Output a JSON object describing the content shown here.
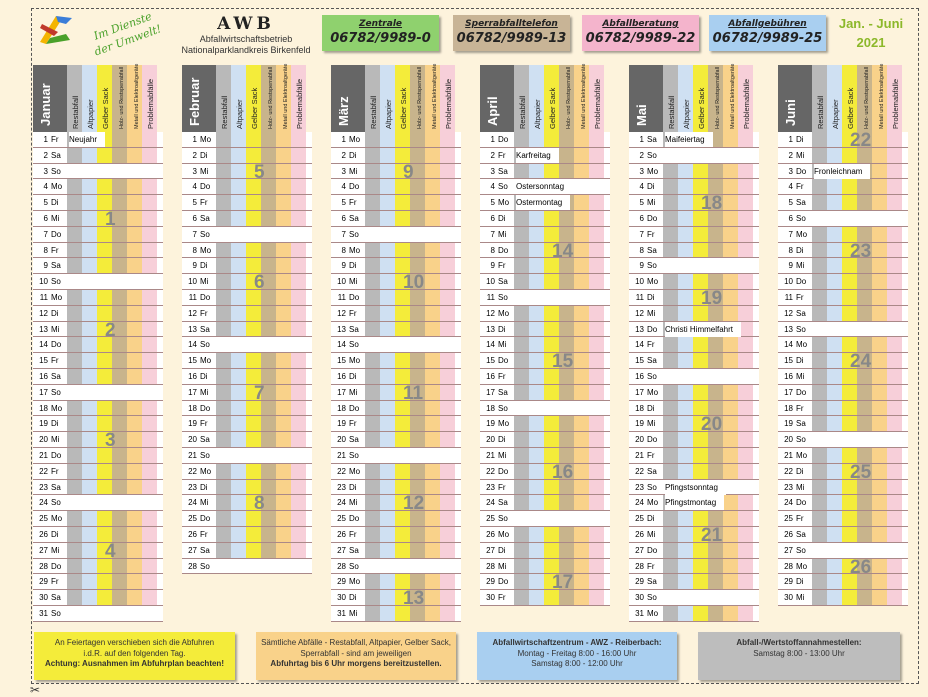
{
  "header": {
    "title": "AWB",
    "subtitle1": "Abfallwirtschaftsbetrieb",
    "subtitle2": "Nationalparklandkreis Birkenfeld",
    "slogan": "Im Dienste der Umwelt!",
    "period": "Jan. - Juni",
    "year": "2021"
  },
  "cards": [
    {
      "label": "Zentrale",
      "number": "06782/9989-0",
      "color": "#8fd16e"
    },
    {
      "label": "Sperrabfalltelefon",
      "number": "06782/9989-13",
      "color": "#c8b496"
    },
    {
      "label": "Abfallberatung",
      "number": "06782/9989-22",
      "color": "#f4b4cc"
    },
    {
      "label": "Abfallgebühren",
      "number": "06782/9989-25",
      "color": "#a9cff0"
    }
  ],
  "column_headers": [
    "Restabfall",
    "Altpapier",
    "Gelber Sack",
    "Holz- und Restsperrabfall",
    "Metall und Elektroaltgeräte",
    "Problemabfälle"
  ],
  "column_colors": [
    "#b9b9b9",
    "#cfe0f2",
    "#f4ec3a",
    "#c8b48c",
    "#f9d28a",
    "#f7cfd9"
  ],
  "months": [
    {
      "name": "Januar",
      "days": [
        [
          "1",
          "Fr",
          "Neujahr"
        ],
        [
          "2",
          "Sa",
          ""
        ],
        [
          "3",
          "So",
          ""
        ],
        [
          "4",
          "Mo",
          ""
        ],
        [
          "5",
          "Di",
          ""
        ],
        [
          "6",
          "Mi",
          ""
        ],
        [
          "7",
          "Do",
          ""
        ],
        [
          "8",
          "Fr",
          ""
        ],
        [
          "9",
          "Sa",
          ""
        ],
        [
          "10",
          "So",
          ""
        ],
        [
          "11",
          "Mo",
          ""
        ],
        [
          "12",
          "Di",
          ""
        ],
        [
          "13",
          "Mi",
          ""
        ],
        [
          "14",
          "Do",
          ""
        ],
        [
          "15",
          "Fr",
          ""
        ],
        [
          "16",
          "Sa",
          ""
        ],
        [
          "17",
          "So",
          ""
        ],
        [
          "18",
          "Mo",
          ""
        ],
        [
          "19",
          "Di",
          ""
        ],
        [
          "20",
          "Mi",
          ""
        ],
        [
          "21",
          "Do",
          ""
        ],
        [
          "22",
          "Fr",
          ""
        ],
        [
          "23",
          "Sa",
          ""
        ],
        [
          "24",
          "So",
          ""
        ],
        [
          "25",
          "Mo",
          ""
        ],
        [
          "26",
          "Di",
          ""
        ],
        [
          "27",
          "Mi",
          ""
        ],
        [
          "28",
          "Do",
          ""
        ],
        [
          "29",
          "Fr",
          ""
        ],
        [
          "30",
          "Sa",
          ""
        ],
        [
          "31",
          "So",
          ""
        ]
      ],
      "weeks": [
        {
          "n": "1",
          "row": 5
        },
        {
          "n": "2",
          "row": 12
        },
        {
          "n": "3",
          "row": 19
        },
        {
          "n": "4",
          "row": 26
        }
      ]
    },
    {
      "name": "Februar",
      "days": [
        [
          "1",
          "Mo",
          ""
        ],
        [
          "2",
          "Di",
          ""
        ],
        [
          "3",
          "Mi",
          ""
        ],
        [
          "4",
          "Do",
          ""
        ],
        [
          "5",
          "Fr",
          ""
        ],
        [
          "6",
          "Sa",
          ""
        ],
        [
          "7",
          "So",
          ""
        ],
        [
          "8",
          "Mo",
          ""
        ],
        [
          "9",
          "Di",
          ""
        ],
        [
          "10",
          "Mi",
          ""
        ],
        [
          "11",
          "Do",
          ""
        ],
        [
          "12",
          "Fr",
          ""
        ],
        [
          "13",
          "Sa",
          ""
        ],
        [
          "14",
          "So",
          ""
        ],
        [
          "15",
          "Mo",
          ""
        ],
        [
          "16",
          "Di",
          ""
        ],
        [
          "17",
          "Mi",
          ""
        ],
        [
          "18",
          "Do",
          ""
        ],
        [
          "19",
          "Fr",
          ""
        ],
        [
          "20",
          "Sa",
          ""
        ],
        [
          "21",
          "So",
          ""
        ],
        [
          "22",
          "Mo",
          ""
        ],
        [
          "23",
          "Di",
          ""
        ],
        [
          "24",
          "Mi",
          ""
        ],
        [
          "25",
          "Do",
          ""
        ],
        [
          "26",
          "Fr",
          ""
        ],
        [
          "27",
          "Sa",
          ""
        ],
        [
          "28",
          "So",
          ""
        ]
      ],
      "weeks": [
        {
          "n": "5",
          "row": 2
        },
        {
          "n": "6",
          "row": 9
        },
        {
          "n": "7",
          "row": 16
        },
        {
          "n": "8",
          "row": 23
        }
      ]
    },
    {
      "name": "März",
      "days": [
        [
          "1",
          "Mo",
          ""
        ],
        [
          "2",
          "Di",
          ""
        ],
        [
          "3",
          "Mi",
          ""
        ],
        [
          "4",
          "Do",
          ""
        ],
        [
          "5",
          "Fr",
          ""
        ],
        [
          "6",
          "Sa",
          ""
        ],
        [
          "7",
          "So",
          ""
        ],
        [
          "8",
          "Mo",
          ""
        ],
        [
          "9",
          "Di",
          ""
        ],
        [
          "10",
          "Mi",
          ""
        ],
        [
          "11",
          "Do",
          ""
        ],
        [
          "12",
          "Fr",
          ""
        ],
        [
          "13",
          "Sa",
          ""
        ],
        [
          "14",
          "So",
          ""
        ],
        [
          "15",
          "Mo",
          ""
        ],
        [
          "16",
          "Di",
          ""
        ],
        [
          "17",
          "Mi",
          ""
        ],
        [
          "18",
          "Do",
          ""
        ],
        [
          "19",
          "Fr",
          ""
        ],
        [
          "20",
          "Sa",
          ""
        ],
        [
          "21",
          "So",
          ""
        ],
        [
          "22",
          "Mo",
          ""
        ],
        [
          "23",
          "Di",
          ""
        ],
        [
          "24",
          "Mi",
          ""
        ],
        [
          "25",
          "Do",
          ""
        ],
        [
          "26",
          "Fr",
          ""
        ],
        [
          "27",
          "Sa",
          ""
        ],
        [
          "28",
          "So",
          ""
        ],
        [
          "29",
          "Mo",
          ""
        ],
        [
          "30",
          "Di",
          ""
        ],
        [
          "31",
          "Mi",
          ""
        ]
      ],
      "weeks": [
        {
          "n": "9",
          "row": 2
        },
        {
          "n": "10",
          "row": 9
        },
        {
          "n": "11",
          "row": 16
        },
        {
          "n": "12",
          "row": 23
        },
        {
          "n": "13",
          "row": 29
        }
      ]
    },
    {
      "name": "April",
      "days": [
        [
          "1",
          "Do",
          ""
        ],
        [
          "2",
          "Fr",
          "Karfreitag"
        ],
        [
          "3",
          "Sa",
          ""
        ],
        [
          "4",
          "So",
          "Ostersonntag"
        ],
        [
          "5",
          "Mo",
          "Ostermontag"
        ],
        [
          "6",
          "Di",
          ""
        ],
        [
          "7",
          "Mi",
          ""
        ],
        [
          "8",
          "Do",
          ""
        ],
        [
          "9",
          "Fr",
          ""
        ],
        [
          "10",
          "Sa",
          ""
        ],
        [
          "11",
          "So",
          ""
        ],
        [
          "12",
          "Mo",
          ""
        ],
        [
          "13",
          "Di",
          ""
        ],
        [
          "14",
          "Mi",
          ""
        ],
        [
          "15",
          "Do",
          ""
        ],
        [
          "16",
          "Fr",
          ""
        ],
        [
          "17",
          "Sa",
          ""
        ],
        [
          "18",
          "So",
          ""
        ],
        [
          "19",
          "Mo",
          ""
        ],
        [
          "20",
          "Di",
          ""
        ],
        [
          "21",
          "Mi",
          ""
        ],
        [
          "22",
          "Do",
          ""
        ],
        [
          "23",
          "Fr",
          ""
        ],
        [
          "24",
          "Sa",
          ""
        ],
        [
          "25",
          "So",
          ""
        ],
        [
          "26",
          "Mo",
          ""
        ],
        [
          "27",
          "Di",
          ""
        ],
        [
          "28",
          "Mi",
          ""
        ],
        [
          "29",
          "Do",
          ""
        ],
        [
          "30",
          "Fr",
          ""
        ]
      ],
      "weeks": [
        {
          "n": "14",
          "row": 7
        },
        {
          "n": "15",
          "row": 14
        },
        {
          "n": "16",
          "row": 21
        },
        {
          "n": "17",
          "row": 28
        }
      ]
    },
    {
      "name": "Mai",
      "days": [
        [
          "1",
          "Sa",
          "Maifeiertag"
        ],
        [
          "2",
          "So",
          ""
        ],
        [
          "3",
          "Mo",
          ""
        ],
        [
          "4",
          "Di",
          ""
        ],
        [
          "5",
          "Mi",
          ""
        ],
        [
          "6",
          "Do",
          ""
        ],
        [
          "7",
          "Fr",
          ""
        ],
        [
          "8",
          "Sa",
          ""
        ],
        [
          "9",
          "So",
          ""
        ],
        [
          "10",
          "Mo",
          ""
        ],
        [
          "11",
          "Di",
          ""
        ],
        [
          "12",
          "Mi",
          ""
        ],
        [
          "13",
          "Do",
          "Christi Himmelfahrt"
        ],
        [
          "14",
          "Fr",
          ""
        ],
        [
          "15",
          "Sa",
          ""
        ],
        [
          "16",
          "So",
          ""
        ],
        [
          "17",
          "Mo",
          ""
        ],
        [
          "18",
          "Di",
          ""
        ],
        [
          "19",
          "Mi",
          ""
        ],
        [
          "20",
          "Do",
          ""
        ],
        [
          "21",
          "Fr",
          ""
        ],
        [
          "22",
          "Sa",
          ""
        ],
        [
          "23",
          "So",
          "Pfingstsonntag"
        ],
        [
          "24",
          "Mo",
          "Pfingstmontag"
        ],
        [
          "25",
          "Di",
          ""
        ],
        [
          "26",
          "Mi",
          ""
        ],
        [
          "27",
          "Do",
          ""
        ],
        [
          "28",
          "Fr",
          ""
        ],
        [
          "29",
          "Sa",
          ""
        ],
        [
          "30",
          "So",
          ""
        ],
        [
          "31",
          "Mo",
          ""
        ]
      ],
      "weeks": [
        {
          "n": "18",
          "row": 4
        },
        {
          "n": "19",
          "row": 10
        },
        {
          "n": "20",
          "row": 18
        },
        {
          "n": "21",
          "row": 25
        }
      ]
    },
    {
      "name": "Juni",
      "days": [
        [
          "1",
          "Di",
          ""
        ],
        [
          "2",
          "Mi",
          ""
        ],
        [
          "3",
          "Do",
          "Fronleichnam"
        ],
        [
          "4",
          "Fr",
          ""
        ],
        [
          "5",
          "Sa",
          ""
        ],
        [
          "6",
          "So",
          ""
        ],
        [
          "7",
          "Mo",
          ""
        ],
        [
          "8",
          "Di",
          ""
        ],
        [
          "9",
          "Mi",
          ""
        ],
        [
          "10",
          "Do",
          ""
        ],
        [
          "11",
          "Fr",
          ""
        ],
        [
          "12",
          "Sa",
          ""
        ],
        [
          "13",
          "So",
          ""
        ],
        [
          "14",
          "Mo",
          ""
        ],
        [
          "15",
          "Di",
          ""
        ],
        [
          "16",
          "Mi",
          ""
        ],
        [
          "17",
          "Do",
          ""
        ],
        [
          "18",
          "Fr",
          ""
        ],
        [
          "19",
          "Sa",
          ""
        ],
        [
          "20",
          "So",
          ""
        ],
        [
          "21",
          "Mo",
          ""
        ],
        [
          "22",
          "Di",
          ""
        ],
        [
          "23",
          "Mi",
          ""
        ],
        [
          "24",
          "Do",
          ""
        ],
        [
          "25",
          "Fr",
          ""
        ],
        [
          "26",
          "Sa",
          ""
        ],
        [
          "27",
          "So",
          ""
        ],
        [
          "28",
          "Mo",
          ""
        ],
        [
          "29",
          "Di",
          ""
        ],
        [
          "30",
          "Mi",
          ""
        ]
      ],
      "weeks": [
        {
          "n": "22",
          "row": 0
        },
        {
          "n": "23",
          "row": 7
        },
        {
          "n": "24",
          "row": 14
        },
        {
          "n": "25",
          "row": 21
        },
        {
          "n": "26",
          "row": 27
        }
      ]
    }
  ],
  "notes": [
    {
      "lines": [
        "An Feiertagen verschieben sich die Abfuhren",
        "i.d.R. auf den folgenden Tag.",
        "Achtung: Ausnahmen im Abfuhrplan beachten!"
      ],
      "color": "#f4ec3a"
    },
    {
      "lines": [
        "Sämtliche Abfälle - Restabfall, Altpapier, Gelber Sack,",
        "Sperrabfall - sind am jeweiligen",
        "Abfuhrtag bis 6 Uhr morgens bereitzustellen."
      ],
      "color": "#f9d28a"
    },
    {
      "lines": [
        "Abfallwirtschaftzentrum - AWZ - Reiberbach:",
        "Montag - Freitag    8:00 - 16:00 Uhr",
        "Samstag    8:00 - 12:00 Uhr"
      ],
      "color": "#a9cff0"
    },
    {
      "lines": [
        "Abfall-/Wertstoffannahmestellen:",
        "Samstag    8:00 - 13:00 Uhr",
        ""
      ],
      "color": "#bdbdbd"
    }
  ]
}
